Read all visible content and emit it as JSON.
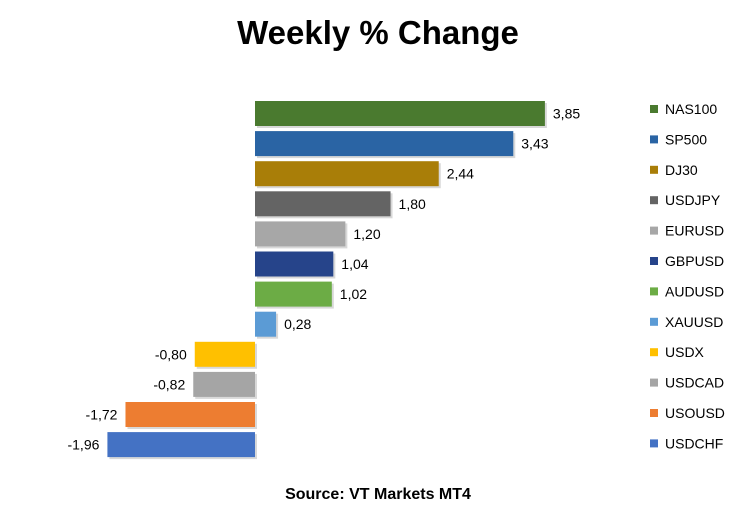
{
  "title": "Weekly % Change",
  "source": "Source: VT Markets MT4",
  "chart_data": {
    "type": "bar",
    "orientation": "horizontal",
    "title": "Weekly % Change",
    "categories": [
      "NAS100",
      "SP500",
      "DJ30",
      "USDJPY",
      "EURUSD",
      "GBPUSD",
      "AUDUSD",
      "XAUUSD",
      "USDX",
      "USDCAD",
      "USOUSD",
      "USDCHF"
    ],
    "values": [
      3.85,
      3.43,
      2.44,
      1.8,
      1.2,
      1.04,
      1.02,
      0.28,
      -0.8,
      -0.82,
      -1.72,
      -1.96
    ],
    "value_labels": [
      "3,85",
      "3,43",
      "2,44",
      "1,80",
      "1,20",
      "1,04",
      "1,02",
      "0,28",
      "-0,80",
      "-0,82",
      "-1,72",
      "-1,96"
    ],
    "colors": [
      "#4a7a2f",
      "#2a64a4",
      "#a97e08",
      "#646464",
      "#a7a7a7",
      "#26448a",
      "#6cac45",
      "#5b9bd5",
      "#ffc000",
      "#a5a5a5",
      "#ed7d31",
      "#4472c4"
    ],
    "legend": {
      "position": "right",
      "entries": [
        "NAS100",
        "SP500",
        "DJ30",
        "USDJPY",
        "EURUSD",
        "GBPUSD",
        "AUDUSD",
        "XAUUSD",
        "USDX",
        "USDCAD",
        "USOUSD",
        "USDCHF"
      ]
    },
    "grid": false
  }
}
